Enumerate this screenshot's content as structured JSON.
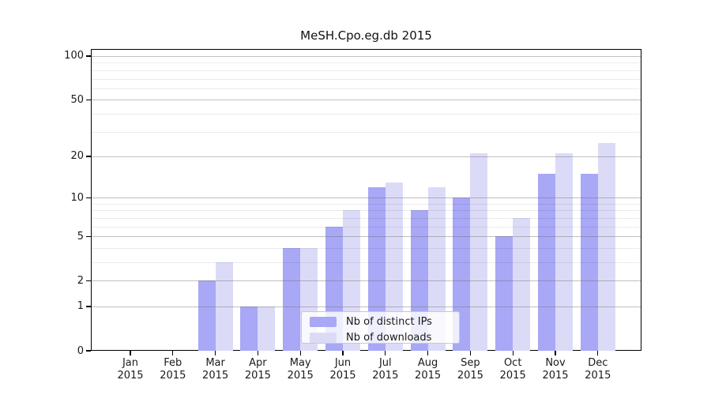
{
  "chart_data": {
    "type": "bar",
    "title": "MeSH.Cpo.eg.db 2015",
    "categories": [
      "Jan",
      "Feb",
      "Mar",
      "Apr",
      "May",
      "Jun",
      "Jul",
      "Aug",
      "Sep",
      "Oct",
      "Nov",
      "Dec"
    ],
    "category_year": "2015",
    "series": [
      {
        "name": "Nb of distinct IPs",
        "color": "#a8a8f6",
        "values": [
          0,
          0,
          2,
          1,
          4,
          6,
          12,
          8,
          10,
          5,
          15,
          15
        ]
      },
      {
        "name": "Nb of downloads",
        "color": "#dbdbf8",
        "values": [
          0,
          0,
          3,
          1,
          4,
          8,
          13,
          12,
          21,
          7,
          21,
          25
        ]
      }
    ],
    "yscale": "log1p",
    "ylim": [
      0,
      113
    ],
    "yticks": [
      0,
      1,
      2,
      5,
      10,
      20,
      50,
      100
    ],
    "minor_gridlines": [
      3,
      4,
      6,
      7,
      8,
      9,
      30,
      40,
      60,
      70,
      80,
      90
    ],
    "grid": true,
    "legend_position": "lower center",
    "xlabel": "",
    "ylabel": ""
  }
}
